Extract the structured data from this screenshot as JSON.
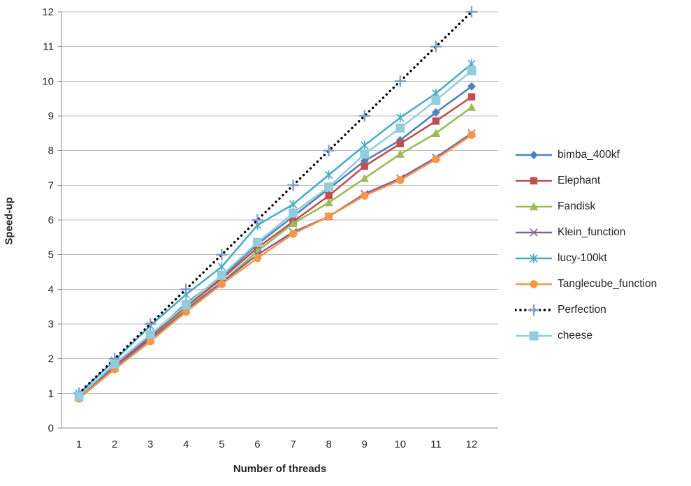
{
  "chart_data": {
    "type": "line",
    "title": "",
    "xlabel": "Number of threads",
    "ylabel": "Speed-up",
    "x": [
      1,
      2,
      3,
      4,
      5,
      6,
      7,
      8,
      9,
      10,
      11,
      12
    ],
    "xticks": [
      "1",
      "2",
      "3",
      "4",
      "5",
      "6",
      "7",
      "8",
      "9",
      "10",
      "11",
      "12"
    ],
    "yticks": [
      0,
      1,
      2,
      3,
      4,
      5,
      6,
      7,
      8,
      9,
      10,
      11,
      12
    ],
    "ylim": [
      0,
      12
    ],
    "grid": "horizontal",
    "legend_position": "right",
    "colors": {
      "gridline": "#BFBFBF",
      "axis_line": "#898989",
      "tick_text": "#262626",
      "background": "#FFFFFF"
    },
    "series": [
      {
        "name": "bimba_400kf",
        "color": "#4F81BD",
        "marker": "diamond",
        "line": "solid",
        "values": [
          0.95,
          1.8,
          2.65,
          3.6,
          4.35,
          5.3,
          6.1,
          6.9,
          7.7,
          8.3,
          9.1,
          9.85
        ]
      },
      {
        "name": "Elephant",
        "color": "#C0504D",
        "marker": "square",
        "line": "solid",
        "values": [
          0.93,
          1.78,
          2.6,
          3.5,
          4.3,
          5.2,
          5.95,
          6.7,
          7.55,
          8.2,
          8.85,
          9.55
        ]
      },
      {
        "name": "Fandisk",
        "color": "#9BBB59",
        "marker": "triangle",
        "line": "solid",
        "values": [
          0.87,
          1.72,
          2.55,
          3.45,
          4.2,
          5.1,
          5.9,
          6.5,
          7.2,
          7.9,
          8.5,
          9.25
        ]
      },
      {
        "name": "Klein_function",
        "color": "#8064A2",
        "marker": "x",
        "line": "solid",
        "values": [
          0.9,
          1.75,
          2.55,
          3.4,
          4.2,
          5.0,
          5.65,
          6.1,
          6.75,
          7.2,
          7.8,
          8.5
        ]
      },
      {
        "name": "lucy-100kt",
        "color": "#4BACC6",
        "marker": "asterisk",
        "line": "solid",
        "values": [
          1.0,
          1.95,
          2.95,
          3.85,
          4.65,
          5.85,
          6.45,
          7.3,
          8.15,
          8.95,
          9.65,
          10.5
        ]
      },
      {
        "name": "Tanglecube_function",
        "color": "#F79646",
        "marker": "circle",
        "line": "solid",
        "values": [
          0.85,
          1.7,
          2.5,
          3.35,
          4.15,
          4.9,
          5.6,
          6.1,
          6.7,
          7.15,
          7.75,
          8.45
        ]
      },
      {
        "name": "Perfection",
        "color": "#000000",
        "marker": "plus",
        "marker_color": "#7F9CC9",
        "line": "dotted",
        "values": [
          1,
          2,
          3,
          4,
          5,
          6,
          7,
          8,
          9,
          10,
          11,
          12
        ]
      },
      {
        "name": "cheese",
        "color": "#93CDDD",
        "marker": "square",
        "marker_size": 13,
        "line": "solid",
        "values": [
          0.92,
          1.85,
          2.7,
          3.55,
          4.4,
          5.35,
          6.2,
          6.95,
          7.9,
          8.65,
          9.45,
          10.3
        ]
      }
    ]
  }
}
